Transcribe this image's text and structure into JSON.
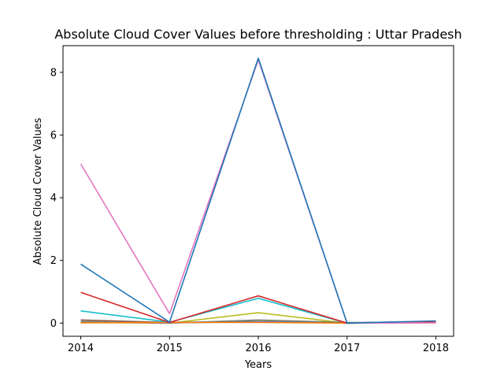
{
  "chart_data": {
    "type": "line",
    "title": "Absolute Cloud Cover Values before thresholding : Uttar Pradesh",
    "xlabel": "Years",
    "ylabel": "Absolute Cloud Cover Values",
    "x": [
      2014,
      2015,
      2016,
      2017,
      2018
    ],
    "xlim": [
      2013.8,
      2018.2
    ],
    "ylim": [
      -0.42,
      8.85
    ],
    "xticks": [
      "2014",
      "2015",
      "2016",
      "2017",
      "2018"
    ],
    "yticks": [
      "0",
      "2",
      "4",
      "6",
      "8"
    ],
    "grid": false,
    "legend": "none",
    "series": [
      {
        "color": "#bcbd22",
        "values": [
          0.02,
          0.0,
          0.33,
          0.0,
          0.05
        ]
      },
      {
        "color": "#8c564b",
        "values": [
          0.1,
          0.02,
          0.05,
          0.0,
          0.02
        ]
      },
      {
        "color": "#7f7f7f",
        "values": [
          0.05,
          0.0,
          0.1,
          0.02,
          0.02
        ]
      },
      {
        "color": "#2ca02c",
        "values": [
          0.03,
          0.01,
          0.05,
          0.01,
          0.03
        ]
      },
      {
        "color": "#9467bd",
        "values": [
          0.02,
          0.01,
          0.04,
          0.0,
          0.06
        ]
      },
      {
        "color": "#ff7f0e",
        "values": [
          0.01,
          0.02,
          0.02,
          0.0,
          0.01
        ]
      },
      {
        "color": "#17becf",
        "values": [
          0.39,
          0.03,
          0.79,
          0.0,
          0.02
        ]
      },
      {
        "color": "#d62728",
        "values": [
          0.98,
          0.02,
          0.87,
          0.0,
          0.03
        ]
      },
      {
        "color": "#e377c2",
        "values": [
          5.08,
          0.3,
          8.4,
          0.0,
          0.01
        ]
      },
      {
        "color": "#1f77b4",
        "values": [
          1.88,
          0.03,
          8.45,
          0.0,
          0.07
        ]
      }
    ]
  }
}
